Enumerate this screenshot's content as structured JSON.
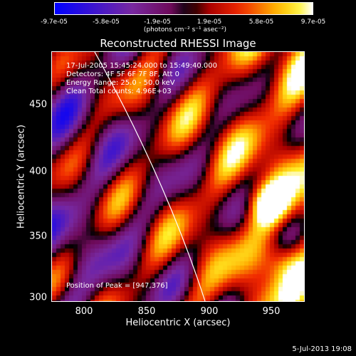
{
  "colorbar": {
    "ticks": [
      "-9.7e-05",
      "-5.8e-05",
      "-1.9e-05",
      "1.9e-05",
      "5.8e-05",
      "9.7e-05"
    ],
    "unit": "(photons cm⁻² s⁻¹ asec⁻²)"
  },
  "title": "Reconstructed RHESSI Image",
  "info": {
    "line1": "17-Jul-2005 15:45:24.000 to 15:49:40.000",
    "line2": "Detectors: 4F 5F 6F 7F 8F, Att 0",
    "line3": "Energy Range: 25.0 - 50.0 keV",
    "line4": "Clean    Total counts: 4.96E+03",
    "peak": "Position of Peak = [947,376]"
  },
  "axes": {
    "xlabel": "Heliocentric X (arcsec)",
    "ylabel": "Heliocentric Y (arcsec)",
    "xticks": [
      "800",
      "850",
      "900",
      "950"
    ],
    "yticks": [
      "300",
      "350",
      "400",
      "450"
    ]
  },
  "stamp": "5-Jul-2013 19:08",
  "colors": {
    "low": "#0000ff",
    "mid": "#800080",
    "high": "#ffff00",
    "background": "#000000"
  }
}
